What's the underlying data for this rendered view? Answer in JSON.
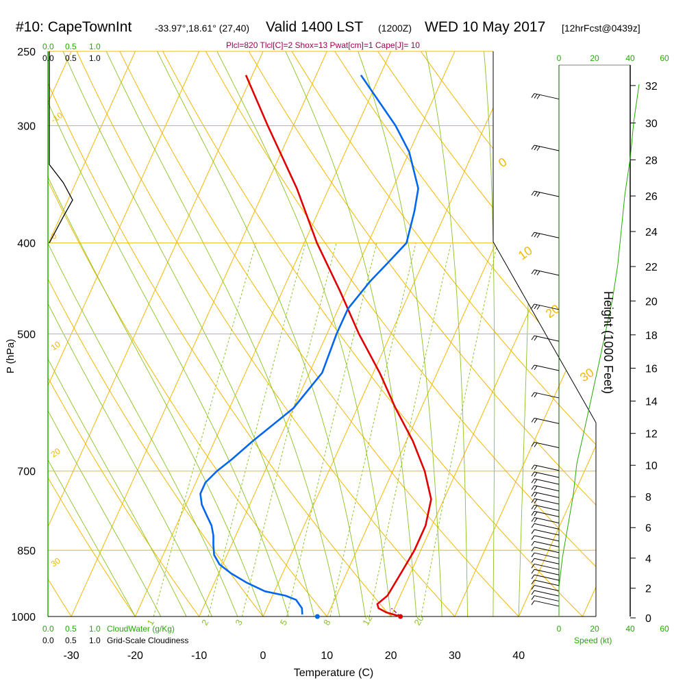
{
  "header": {
    "station": "#10: CapeTownInt",
    "coords": "-33.97°,18.61° (27,40)",
    "valid": "Valid 1400 LST",
    "utc": "(1200Z)",
    "date": "WED 10 May 2017",
    "forecast": "[12hrFcst@0439z]",
    "indices": "Plcl=820 Tlcl[C]=2 Shox=13 Pwat[cm]=1 Cape[J]= 10"
  },
  "colors": {
    "temperature": "#e00000",
    "dewpoint": "#0066ee",
    "isotherm": "#f2b800",
    "isobar": "#f2b800",
    "dry_adiabat": "#f2b800",
    "moist_adiabat": "#8ac220",
    "mixing_ratio": "#8ac220",
    "green_text": "#22aa00",
    "wind_barb": "#000000",
    "cloud_fraction": "#000000",
    "indices_text": "#a0004f"
  },
  "chart_data": {
    "type": "line",
    "subtype": "skew-T log-P sounding",
    "xlabel": "Temperature (C)",
    "ylabel": "P (hPa)",
    "y2label": "Height (1000 Feet)",
    "x_ticks": [
      "-30",
      "-20",
      "-10",
      "0",
      "10",
      "20",
      "30",
      "40"
    ],
    "y_ticks": [
      "250",
      "300",
      "400",
      "500",
      "700",
      "850",
      "1000"
    ],
    "height_ticks": [
      "0",
      "2",
      "4",
      "6",
      "8",
      "10",
      "12",
      "14",
      "16",
      "18",
      "20",
      "22",
      "24",
      "26",
      "28",
      "30",
      "32"
    ],
    "dry_adiabat_labels": [
      "-10",
      "0",
      "10",
      "20",
      "30",
      "0",
      "10",
      "20",
      "30"
    ],
    "mixing_ratio_labels": [
      "1",
      "2",
      "3",
      "5",
      "8",
      "12",
      "20"
    ],
    "cloud_axis": {
      "top_green": [
        "0.0",
        "0.5",
        "1.0"
      ],
      "top_black": [
        "0.0",
        "0.5",
        "1.0"
      ],
      "bottom_green": [
        "0.0",
        "0.5",
        "1.0"
      ],
      "bottom_black": [
        "0.0",
        "0.5",
        "1.0"
      ],
      "cloudwater_label": "CloudWater (g/Kg)",
      "cloudiness_label": "Grid-Scale Cloudiness"
    },
    "speed_axis": {
      "ticks_top": [
        "0",
        "20",
        "40",
        "60"
      ],
      "ticks_bottom": [
        "0",
        "20",
        "40",
        "60"
      ],
      "label": "Speed (kt)"
    },
    "series": [
      {
        "name": "temperature",
        "pressure": [
          1000,
          990,
          980,
          970,
          950,
          900,
          850,
          800,
          750,
          700,
          650,
          600,
          550,
          500,
          450,
          400,
          350,
          300,
          265
        ],
        "temp": [
          21.5,
          19.0,
          17.5,
          17.0,
          18.0,
          18.5,
          19.0,
          19.0,
          18.0,
          15.0,
          11.0,
          6.0,
          1.0,
          -5.0,
          -11.0,
          -18.0,
          -25.0,
          -34.0,
          -41.0
        ]
      },
      {
        "name": "dewpoint",
        "pressure": [
          995,
          980,
          960,
          950,
          940,
          920,
          900,
          880,
          860,
          840,
          820,
          800,
          780,
          760,
          740,
          720,
          700,
          680,
          650,
          600,
          550,
          500,
          470,
          440,
          420,
          400,
          370,
          350,
          320,
          300,
          265
        ],
        "dewpoint": [
          6.0,
          5.5,
          4.0,
          2.0,
          -1.5,
          -5.0,
          -8.0,
          -10.5,
          -12.0,
          -12.8,
          -13.5,
          -14.5,
          -16.0,
          -17.5,
          -18.5,
          -18.5,
          -17.5,
          -16.0,
          -14.0,
          -10.0,
          -8.0,
          -8.5,
          -8.5,
          -7.0,
          -5.5,
          -4.0,
          -5.0,
          -6.0,
          -10.0,
          -14.0,
          -23.0
        ]
      }
    ],
    "parcel": {
      "pressure": [
        1000,
        990,
        980
      ],
      "temp": [
        21.5,
        20.5,
        19.5
      ]
    },
    "surface": {
      "temp": 21.5,
      "dewpoint": 8.5,
      "pressure": 1000
    },
    "wind_speed_kt": {
      "height_kft": [
        0,
        1,
        2,
        3,
        4,
        6,
        8,
        10,
        12,
        14,
        16,
        18,
        20,
        22,
        24,
        26,
        28,
        30,
        32
      ],
      "speed": [
        0,
        0,
        0,
        1,
        2,
        5,
        8,
        10,
        14,
        18,
        22,
        26,
        30,
        33,
        35,
        37,
        40,
        42,
        45
      ]
    },
    "cloud_fraction": {
      "pressure": [
        250,
        270,
        300,
        330,
        345,
        360,
        375,
        400
      ],
      "cloudiness": [
        0.0,
        0.0,
        0.0,
        0.0,
        0.3,
        0.5,
        0.3,
        0.0
      ]
    },
    "xlim": [
      -35,
      35
    ],
    "ylim": [
      1000,
      250
    ],
    "grid": true,
    "legend": "none"
  }
}
